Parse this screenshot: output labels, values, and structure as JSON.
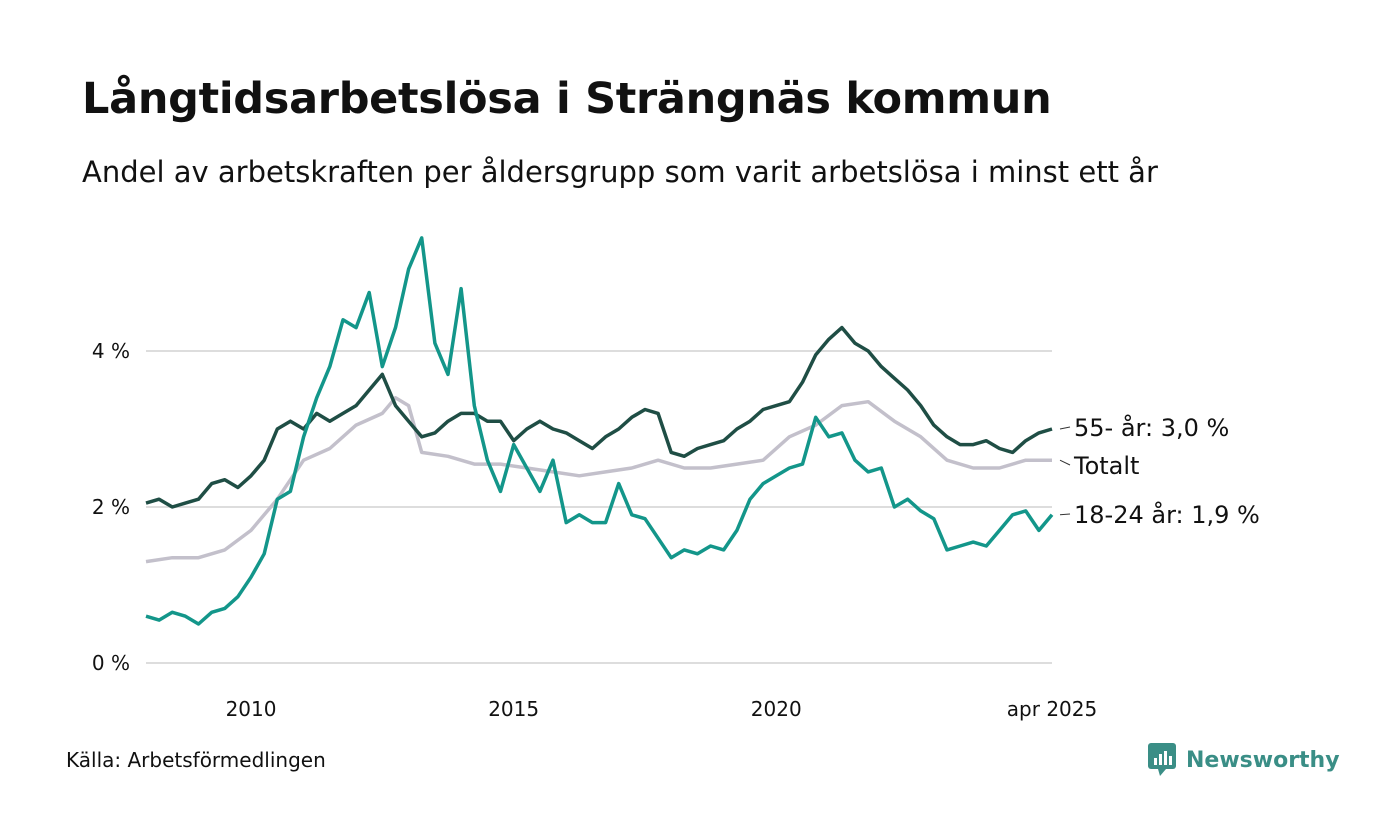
{
  "header": {
    "title": "Långtidsarbetslösa i Strängnäs kommun",
    "subtitle": "Andel av arbetskraften per åldersgrupp som varit arbetslösa i minst ett år"
  },
  "footer": {
    "source": "Källa: Arbetsförmedlingen",
    "brand": "Newsworthy"
  },
  "colors": {
    "series_55": "#1f4e45",
    "series_total": "#c3c0cb",
    "series_18_24": "#13968a",
    "grid": "#dddddd",
    "brand": "#3a8e86"
  },
  "chart_data": {
    "type": "line",
    "title": "Långtidsarbetslösa i Strängnäs kommun",
    "subtitle": "Andel av arbetskraften per åldersgrupp som varit arbetslösa i minst ett år",
    "x_range": [
      "2008-01",
      "2025-04"
    ],
    "x_ticks": [
      {
        "x": "2010-01",
        "label": "2010"
      },
      {
        "x": "2015-01",
        "label": "2015"
      },
      {
        "x": "2020-01",
        "label": "2020"
      },
      {
        "x": "2025-04",
        "label": "apr 2025"
      }
    ],
    "y_ticks": [
      {
        "v": 0,
        "label": "0 %"
      },
      {
        "v": 2,
        "label": "2 %"
      },
      {
        "v": 4,
        "label": "4 %"
      }
    ],
    "ylim": [
      0,
      5.6
    ],
    "grid": true,
    "series": [
      {
        "name": "55- år",
        "end_label": "55- år: 3,0 %",
        "color": "#1f4e45",
        "points": [
          [
            "2008-01",
            2.05
          ],
          [
            "2008-04",
            2.1
          ],
          [
            "2008-07",
            2.0
          ],
          [
            "2008-10",
            2.05
          ],
          [
            "2009-01",
            2.1
          ],
          [
            "2009-04",
            2.3
          ],
          [
            "2009-07",
            2.35
          ],
          [
            "2009-10",
            2.25
          ],
          [
            "2010-01",
            2.4
          ],
          [
            "2010-04",
            2.6
          ],
          [
            "2010-07",
            3.0
          ],
          [
            "2010-10",
            3.1
          ],
          [
            "2011-01",
            3.0
          ],
          [
            "2011-04",
            3.2
          ],
          [
            "2011-07",
            3.1
          ],
          [
            "2011-10",
            3.2
          ],
          [
            "2012-01",
            3.3
          ],
          [
            "2012-04",
            3.5
          ],
          [
            "2012-07",
            3.7
          ],
          [
            "2012-10",
            3.3
          ],
          [
            "2013-01",
            3.1
          ],
          [
            "2013-04",
            2.9
          ],
          [
            "2013-07",
            2.95
          ],
          [
            "2013-10",
            3.1
          ],
          [
            "2014-01",
            3.2
          ],
          [
            "2014-04",
            3.2
          ],
          [
            "2014-07",
            3.1
          ],
          [
            "2014-10",
            3.1
          ],
          [
            "2015-01",
            2.85
          ],
          [
            "2015-04",
            3.0
          ],
          [
            "2015-07",
            3.1
          ],
          [
            "2015-10",
            3.0
          ],
          [
            "2016-01",
            2.95
          ],
          [
            "2016-04",
            2.85
          ],
          [
            "2016-07",
            2.75
          ],
          [
            "2016-10",
            2.9
          ],
          [
            "2017-01",
            3.0
          ],
          [
            "2017-04",
            3.15
          ],
          [
            "2017-07",
            3.25
          ],
          [
            "2017-10",
            3.2
          ],
          [
            "2018-01",
            2.7
          ],
          [
            "2018-04",
            2.65
          ],
          [
            "2018-07",
            2.75
          ],
          [
            "2018-10",
            2.8
          ],
          [
            "2019-01",
            2.85
          ],
          [
            "2019-04",
            3.0
          ],
          [
            "2019-07",
            3.1
          ],
          [
            "2019-10",
            3.25
          ],
          [
            "2020-01",
            3.3
          ],
          [
            "2020-04",
            3.35
          ],
          [
            "2020-07",
            3.6
          ],
          [
            "2020-10",
            3.95
          ],
          [
            "2021-01",
            4.15
          ],
          [
            "2021-04",
            4.3
          ],
          [
            "2021-07",
            4.1
          ],
          [
            "2021-10",
            4.0
          ],
          [
            "2022-01",
            3.8
          ],
          [
            "2022-04",
            3.65
          ],
          [
            "2022-07",
            3.5
          ],
          [
            "2022-10",
            3.3
          ],
          [
            "2023-01",
            3.05
          ],
          [
            "2023-04",
            2.9
          ],
          [
            "2023-07",
            2.8
          ],
          [
            "2023-10",
            2.8
          ],
          [
            "2024-01",
            2.85
          ],
          [
            "2024-04",
            2.75
          ],
          [
            "2024-07",
            2.7
          ],
          [
            "2024-10",
            2.85
          ],
          [
            "2025-01",
            2.95
          ],
          [
            "2025-04",
            3.0
          ]
        ]
      },
      {
        "name": "Totalt",
        "end_label": "Totalt",
        "color": "#c3c0cb",
        "points": [
          [
            "2008-01",
            1.3
          ],
          [
            "2008-07",
            1.35
          ],
          [
            "2009-01",
            1.35
          ],
          [
            "2009-07",
            1.45
          ],
          [
            "2010-01",
            1.7
          ],
          [
            "2010-07",
            2.1
          ],
          [
            "2011-01",
            2.6
          ],
          [
            "2011-07",
            2.75
          ],
          [
            "2012-01",
            3.05
          ],
          [
            "2012-07",
            3.2
          ],
          [
            "2012-10",
            3.4
          ],
          [
            "2013-01",
            3.3
          ],
          [
            "2013-04",
            2.7
          ],
          [
            "2013-10",
            2.65
          ],
          [
            "2014-04",
            2.55
          ],
          [
            "2014-10",
            2.55
          ],
          [
            "2015-04",
            2.5
          ],
          [
            "2015-10",
            2.45
          ],
          [
            "2016-04",
            2.4
          ],
          [
            "2016-10",
            2.45
          ],
          [
            "2017-04",
            2.5
          ],
          [
            "2017-10",
            2.6
          ],
          [
            "2018-04",
            2.5
          ],
          [
            "2018-10",
            2.5
          ],
          [
            "2019-04",
            2.55
          ],
          [
            "2019-10",
            2.6
          ],
          [
            "2020-04",
            2.9
          ],
          [
            "2020-10",
            3.05
          ],
          [
            "2021-04",
            3.3
          ],
          [
            "2021-10",
            3.35
          ],
          [
            "2022-04",
            3.1
          ],
          [
            "2022-10",
            2.9
          ],
          [
            "2023-04",
            2.6
          ],
          [
            "2023-10",
            2.5
          ],
          [
            "2024-04",
            2.5
          ],
          [
            "2024-10",
            2.6
          ],
          [
            "2025-04",
            2.6
          ]
        ]
      },
      {
        "name": "18-24 år",
        "end_label": "18-24 år: 1,9 %",
        "color": "#13968a",
        "points": [
          [
            "2008-01",
            0.6
          ],
          [
            "2008-04",
            0.55
          ],
          [
            "2008-07",
            0.65
          ],
          [
            "2008-10",
            0.6
          ],
          [
            "2009-01",
            0.5
          ],
          [
            "2009-04",
            0.65
          ],
          [
            "2009-07",
            0.7
          ],
          [
            "2009-10",
            0.85
          ],
          [
            "2010-01",
            1.1
          ],
          [
            "2010-04",
            1.4
          ],
          [
            "2010-07",
            2.1
          ],
          [
            "2010-10",
            2.2
          ],
          [
            "2011-01",
            2.9
          ],
          [
            "2011-04",
            3.4
          ],
          [
            "2011-07",
            3.8
          ],
          [
            "2011-10",
            4.4
          ],
          [
            "2012-01",
            4.3
          ],
          [
            "2012-04",
            4.75
          ],
          [
            "2012-07",
            3.8
          ],
          [
            "2012-10",
            4.3
          ],
          [
            "2013-01",
            5.05
          ],
          [
            "2013-04",
            5.45
          ],
          [
            "2013-07",
            4.1
          ],
          [
            "2013-10",
            3.7
          ],
          [
            "2014-01",
            4.8
          ],
          [
            "2014-04",
            3.3
          ],
          [
            "2014-07",
            2.6
          ],
          [
            "2014-10",
            2.2
          ],
          [
            "2015-01",
            2.8
          ],
          [
            "2015-04",
            2.5
          ],
          [
            "2015-07",
            2.2
          ],
          [
            "2015-10",
            2.6
          ],
          [
            "2016-01",
            1.8
          ],
          [
            "2016-04",
            1.9
          ],
          [
            "2016-07",
            1.8
          ],
          [
            "2016-10",
            1.8
          ],
          [
            "2017-01",
            2.3
          ],
          [
            "2017-04",
            1.9
          ],
          [
            "2017-07",
            1.85
          ],
          [
            "2017-10",
            1.6
          ],
          [
            "2018-01",
            1.35
          ],
          [
            "2018-04",
            1.45
          ],
          [
            "2018-07",
            1.4
          ],
          [
            "2018-10",
            1.5
          ],
          [
            "2019-01",
            1.45
          ],
          [
            "2019-04",
            1.7
          ],
          [
            "2019-07",
            2.1
          ],
          [
            "2019-10",
            2.3
          ],
          [
            "2020-01",
            2.4
          ],
          [
            "2020-04",
            2.5
          ],
          [
            "2020-07",
            2.55
          ],
          [
            "2020-10",
            3.15
          ],
          [
            "2021-01",
            2.9
          ],
          [
            "2021-04",
            2.95
          ],
          [
            "2021-07",
            2.6
          ],
          [
            "2021-10",
            2.45
          ],
          [
            "2022-01",
            2.5
          ],
          [
            "2022-04",
            2.0
          ],
          [
            "2022-07",
            2.1
          ],
          [
            "2022-10",
            1.95
          ],
          [
            "2023-01",
            1.85
          ],
          [
            "2023-04",
            1.45
          ],
          [
            "2023-07",
            1.5
          ],
          [
            "2023-10",
            1.55
          ],
          [
            "2024-01",
            1.5
          ],
          [
            "2024-04",
            1.7
          ],
          [
            "2024-07",
            1.9
          ],
          [
            "2024-10",
            1.95
          ],
          [
            "2025-01",
            1.7
          ],
          [
            "2025-04",
            1.9
          ]
        ]
      }
    ]
  }
}
